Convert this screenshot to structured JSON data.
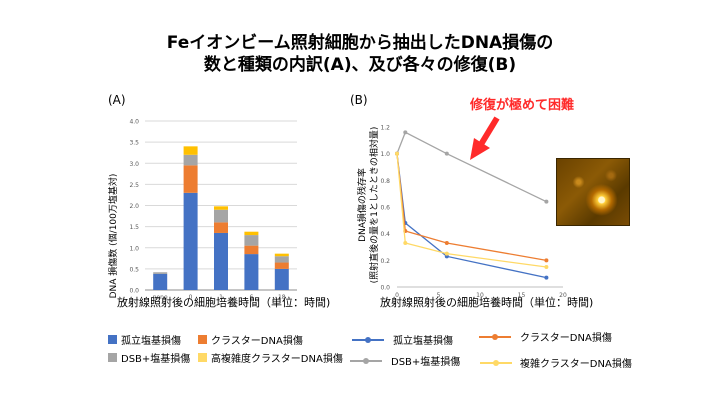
{
  "title_line1": "Feイオンビーム照射細胞から抽出したDNA損傷の",
  "title_line2": "数と種類の内訳(A)、及び各々の修復(B)",
  "panelA_label": "(A)",
  "panelB_label": "(B)",
  "callout": "修復が極めて困難",
  "colors": {
    "isolated": "#4472c4",
    "cluster": "#ed7d31",
    "dsb": "#a5a5a5",
    "complex": "#ffc000",
    "complex_line": "#ffd966",
    "callout": "#ff2a2a"
  },
  "chart_data": [
    {
      "type": "bar",
      "stacked": true,
      "categories": [
        "none",
        "0",
        "1",
        "6",
        "18"
      ],
      "series": [
        {
          "name": "孤立塩基損傷",
          "values": [
            0.38,
            2.3,
            1.35,
            0.85,
            0.5
          ]
        },
        {
          "name": "クラスターDNA損傷",
          "values": [
            0.0,
            0.65,
            0.25,
            0.2,
            0.15
          ]
        },
        {
          "name": "DSB+塩基損傷",
          "values": [
            0.04,
            0.25,
            0.3,
            0.25,
            0.15
          ]
        },
        {
          "name": "高複雑度クラスターDNA損傷",
          "values": [
            0.0,
            0.2,
            0.08,
            0.08,
            0.06
          ]
        }
      ],
      "xlabel": "放射線照射後の細胞培養時間（単位：時間)",
      "ylabel": "DNA 損傷数 (個/100万塩基対)",
      "ylim": [
        0,
        4.0
      ],
      "yticks": [
        "0.0",
        "0.5",
        "1.0",
        "1.5",
        "2.0",
        "2.5",
        "3.0",
        "3.5",
        "4.0"
      ],
      "grid": true
    },
    {
      "type": "line",
      "x": [
        0,
        1,
        6,
        18
      ],
      "series": [
        {
          "name": "孤立塩基損傷",
          "values": [
            1.0,
            0.48,
            0.23,
            0.07
          ]
        },
        {
          "name": "クラスターDNA損傷",
          "values": [
            1.0,
            0.42,
            0.33,
            0.2
          ]
        },
        {
          "name": "DSB+塩基損傷",
          "values": [
            1.0,
            1.16,
            1.0,
            0.64
          ]
        },
        {
          "name": "複雑クラスターDNA損傷",
          "values": [
            1.0,
            0.33,
            0.25,
            0.15
          ]
        }
      ],
      "xlabel": "放射線照射後の細胞培養時間（単位：時間)",
      "ylabel1": "DNA損傷の残存率",
      "ylabel2": "(照射直後の量を1としたときの相対量)",
      "xlim": [
        0,
        20
      ],
      "xticks": [
        "0",
        "5",
        "10",
        "15",
        "20"
      ],
      "ylim": [
        0,
        1.2
      ],
      "yticks": [
        "0.0",
        "0.2",
        "0.4",
        "0.6",
        "0.8",
        "1.0",
        "1.2"
      ],
      "grid": false
    }
  ]
}
